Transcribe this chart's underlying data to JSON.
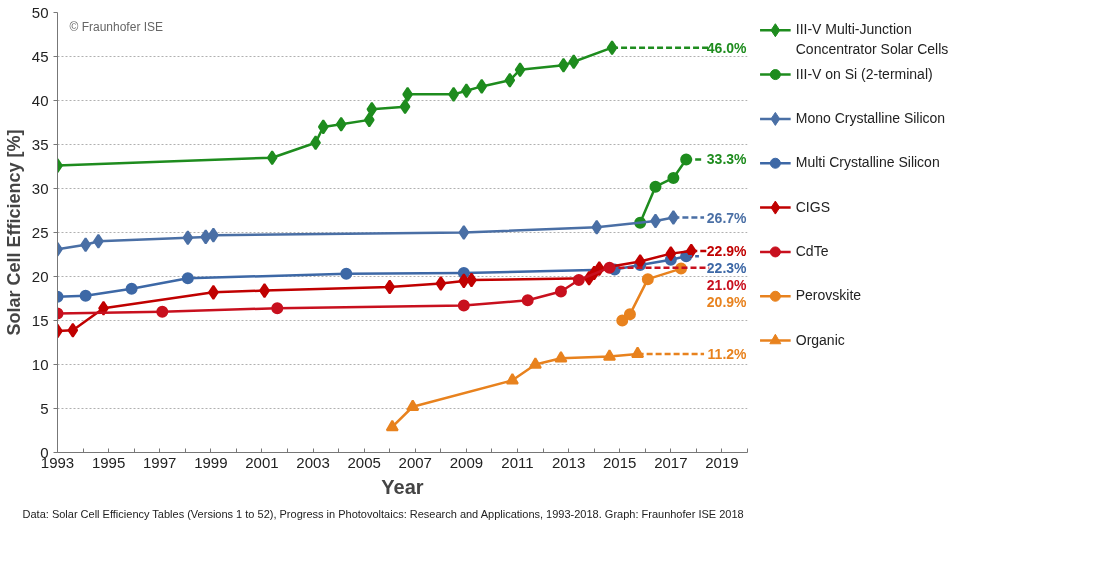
{
  "chart_data": {
    "type": "line",
    "xlabel": "Year",
    "ylabel": "Solar Cell Efficiency [%]",
    "xlim": [
      1993,
      2020
    ],
    "ylim": [
      0,
      50
    ],
    "xticks": [
      1993,
      {
        "value": 1994,
        "label": null
      },
      1995,
      {
        "value": 1996,
        "label": null
      },
      1997,
      {
        "value": 1998,
        "label": null
      },
      1999,
      {
        "value": 2000,
        "label": null
      },
      2001,
      {
        "value": 2002,
        "label": null
      },
      2003,
      {
        "value": 2004,
        "label": null
      },
      2005,
      {
        "value": 2006,
        "label": null
      },
      2007,
      {
        "value": 2008,
        "label": null
      },
      2009,
      {
        "value": 2010,
        "label": null
      },
      2011,
      {
        "value": 2012,
        "label": null
      },
      2013,
      {
        "value": 2014,
        "label": null
      },
      2015,
      {
        "value": 2016,
        "label": null
      },
      2017,
      {
        "value": 2018,
        "label": null
      },
      2019,
      {
        "value": 2020,
        "label": null
      }
    ],
    "yticks": [
      0,
      5,
      10,
      15,
      20,
      25,
      30,
      35,
      40,
      45,
      50
    ],
    "grid": "y",
    "legend": "right",
    "line_style": "solid",
    "series": [
      {
        "name": "III-V Multi-Junction Concentrator Solar Cells",
        "color": "#1e8c1e",
        "marker": "diamond",
        "x": [
          1993.0,
          2001.4,
          2003.1,
          2003.4,
          2004.1,
          2005.2,
          2005.3,
          2006.6,
          2006.7,
          2008.5,
          2009.0,
          2009.6,
          2010.7,
          2011.1,
          2012.8,
          2013.2,
          2014.7
        ],
        "values": [
          32.6,
          33.5,
          35.2,
          37.0,
          37.3,
          37.8,
          39.0,
          39.3,
          40.7,
          40.7,
          41.1,
          41.6,
          42.3,
          43.5,
          44.0,
          44.4,
          46.0
        ]
      },
      {
        "name": "III-V on Si (2-terminal)",
        "color": "#1e8c1e",
        "marker": "circle",
        "x": [
          2015.8,
          2016.4,
          2017.1,
          2017.6
        ],
        "values": [
          26.1,
          30.2,
          31.2,
          33.3
        ]
      },
      {
        "name": "Mono Crystalline Silicon",
        "color": "#4a6fa5",
        "marker": "diamond",
        "x": [
          1993.0,
          1994.1,
          1994.6,
          1998.1,
          1998.8,
          1999.1,
          2008.9,
          2014.1,
          2016.4,
          2017.1
        ],
        "values": [
          23.1,
          23.6,
          24.0,
          24.4,
          24.5,
          24.7,
          25.0,
          25.6,
          26.3,
          26.7
        ]
      },
      {
        "name": "Multi Crystalline Silicon",
        "color": "#3d68a6",
        "marker": "circle",
        "x": [
          1993.0,
          1994.1,
          1995.9,
          1998.1,
          2004.3,
          2008.9,
          2014.8,
          2015.8,
          2017.0,
          2017.6
        ],
        "values": [
          17.7,
          17.8,
          18.6,
          19.8,
          20.3,
          20.4,
          20.8,
          21.3,
          21.9,
          22.3
        ]
      },
      {
        "name": "CIGS",
        "color": "#c00000",
        "marker": "diamond",
        "x": [
          1993.0,
          1993.6,
          1994.8,
          1999.1,
          2001.1,
          2006.0,
          2008.0,
          2008.9,
          2009.2,
          2013.8,
          2014.0,
          2014.2,
          2015.8,
          2017.0,
          2017.8
        ],
        "values": [
          13.8,
          13.9,
          16.4,
          18.2,
          18.4,
          18.8,
          19.2,
          19.5,
          19.6,
          19.8,
          20.4,
          20.9,
          21.7,
          22.6,
          22.9
        ]
      },
      {
        "name": "CdTe",
        "color": "#c8101e",
        "marker": "circle",
        "x": [
          1993.0,
          1997.1,
          2001.6,
          2008.9,
          2011.4,
          2012.7,
          2013.4,
          2014.6
        ],
        "values": [
          15.8,
          16.0,
          16.4,
          16.7,
          17.3,
          18.3,
          19.6,
          21.0
        ]
      },
      {
        "name": "Perovskite",
        "color": "#e8821e",
        "marker": "circle",
        "x": [
          2015.1,
          2015.4,
          2016.1,
          2017.4
        ],
        "values": [
          15.0,
          15.7,
          19.7,
          20.9
        ],
        "value_labels": [
          null,
          null,
          null,
          "20.9%"
        ]
      },
      {
        "name": "Organic",
        "color": "#e8821e",
        "marker": "triangle",
        "x": [
          2006.1,
          2006.9,
          2010.8,
          2011.7,
          2012.7,
          2014.6,
          2015.7
        ],
        "values": [
          2.9,
          5.2,
          8.2,
          10.0,
          10.7,
          10.9,
          11.2
        ]
      },
      {
        "color": "#1e8c1e",
        "marker": "none",
        "line_style": "dashed",
        "x": [
          2014.7,
          2018.5
        ],
        "values": [
          46.0,
          46.0
        ],
        "value_labels": [
          null,
          "46.0%"
        ]
      },
      {
        "color": "#1e8c1e",
        "marker": "none",
        "line_style": "dashed",
        "x": [
          2017.6,
          2018.3
        ],
        "values": [
          33.3,
          33.3
        ],
        "value_labels": [
          null,
          "33.3%"
        ]
      },
      {
        "color": "#4a6fa5",
        "marker": "none",
        "line_style": "dashed",
        "x": [
          2017.1,
          2018.3
        ],
        "values": [
          26.7,
          26.7
        ],
        "value_labels": [
          null,
          "26.7%"
        ]
      },
      {
        "color": "#3d68a6",
        "marker": "none",
        "line_style": "dashed",
        "x": [
          2017.6,
          2018.1
        ],
        "values": [
          22.3,
          22.3
        ],
        "value_labels": [
          null,
          "22.3%"
        ]
      },
      {
        "color": "#c00000",
        "marker": "none",
        "line_style": "dashed",
        "x": [
          2017.8,
          2018.5
        ],
        "values": [
          22.9,
          22.9
        ],
        "value_labels": [
          null,
          "22.9%"
        ]
      },
      {
        "color": "#c8101e",
        "marker": "none",
        "line_style": "dashed",
        "x": [
          2014.6,
          2018.5
        ],
        "values": [
          21.0,
          21.0
        ],
        "value_labels": [
          null,
          "21.0%"
        ]
      },
      {
        "color": "#e8821e",
        "marker": "none",
        "line_style": "dashed",
        "x": [
          2015.7,
          2018.3
        ],
        "values": [
          11.2,
          11.2
        ],
        "value_labels": [
          null,
          "11.2%"
        ]
      }
    ],
    "annotations": [
      "© Fraunhofer ISE",
      "Data: Solar Cell Efficiency Tables (Versions 1 to  52), Progress in Photovoltaics: Research and Applications, 1993-2018. Graph: Fraunhofer ISE 2018"
    ]
  }
}
